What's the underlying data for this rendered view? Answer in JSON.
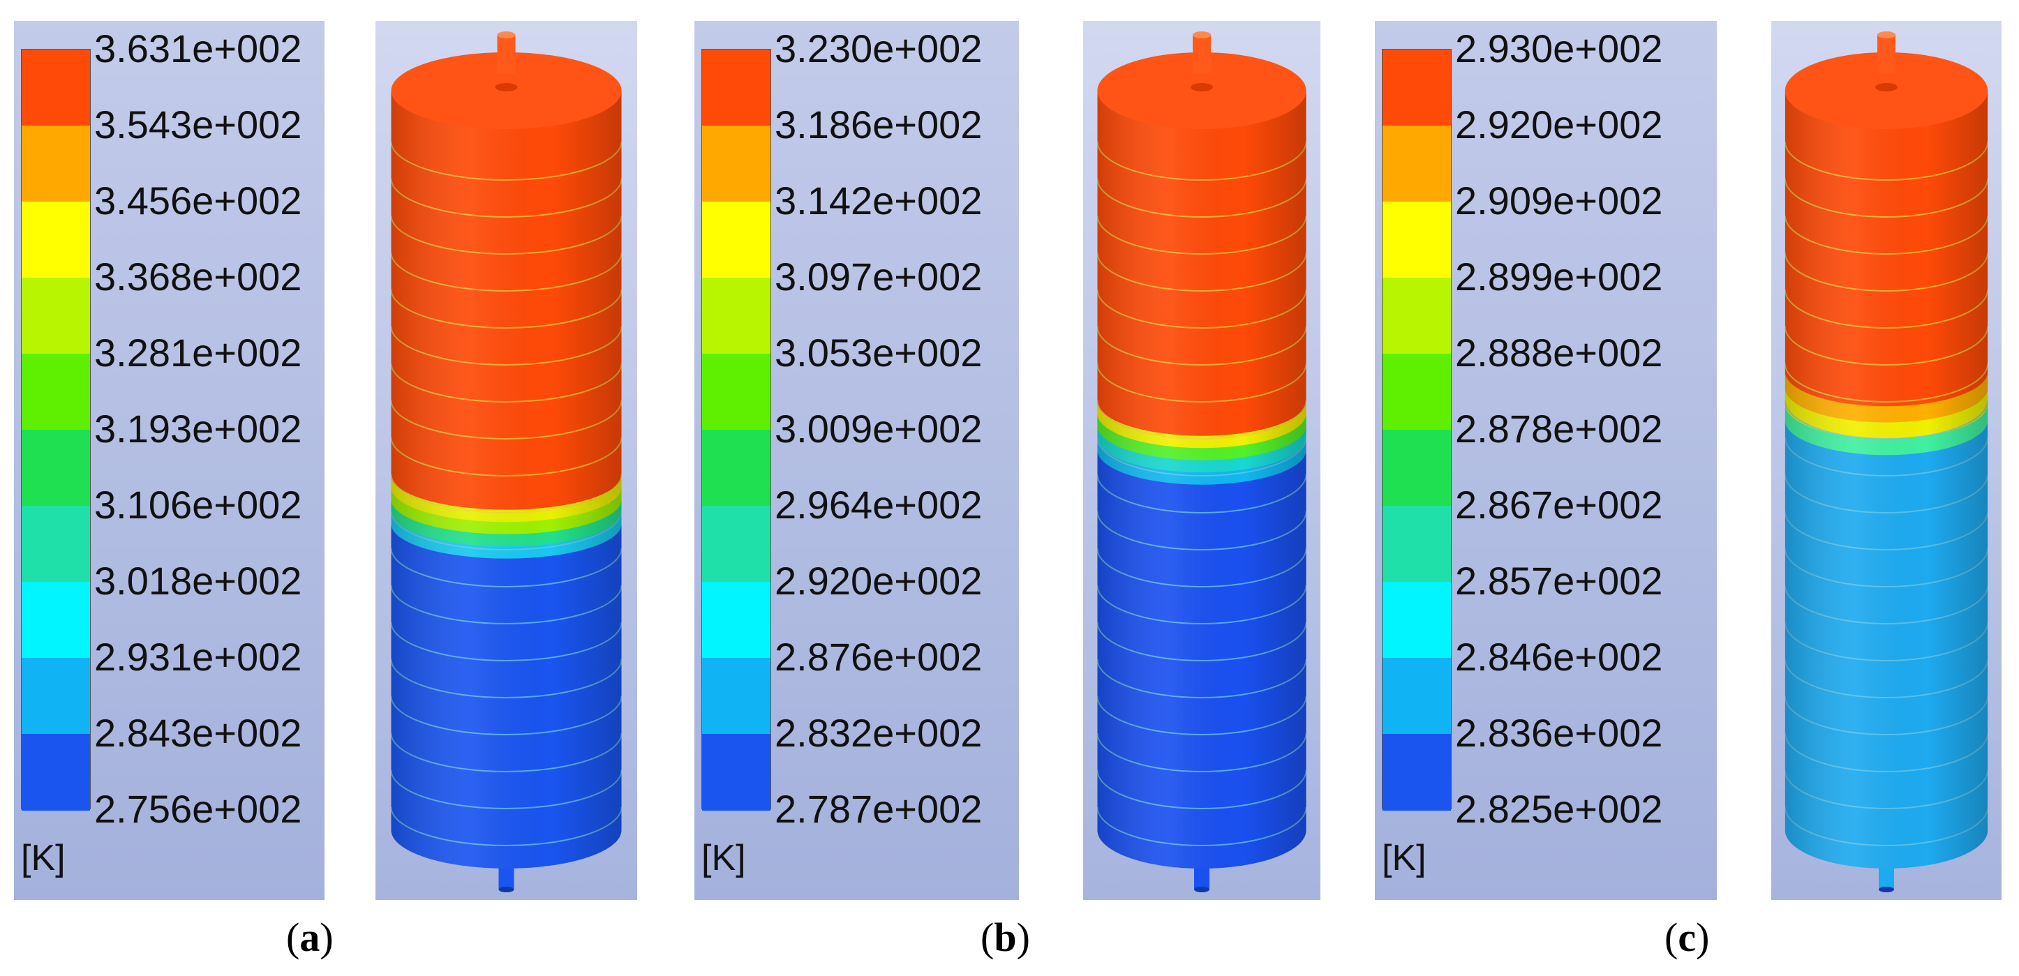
{
  "unit_label": "[K]",
  "panels": [
    {
      "label_letter": "a",
      "ticks": [
        "3.631e+002",
        "3.543e+002",
        "3.456e+002",
        "3.368e+002",
        "3.281e+002",
        "3.193e+002",
        "3.106e+002",
        "3.018e+002",
        "2.931e+002",
        "2.843e+002",
        "2.756e+002"
      ],
      "hot_fraction": 0.52,
      "transition_colors": [
        "#e8f000",
        "#9ef000",
        "#22e08a",
        "#18c8f0"
      ],
      "cold_color": "#1a55f0",
      "hot_color": "#ff4a08"
    },
    {
      "label_letter": "b",
      "ticks": [
        "3.230e+002",
        "3.186e+002",
        "3.142e+002",
        "3.097e+002",
        "3.053e+002",
        "3.009e+002",
        "2.964e+002",
        "2.920e+002",
        "2.876e+002",
        "2.832e+002",
        "2.787e+002"
      ],
      "hot_fraction": 0.42,
      "transition_colors": [
        "#f0f000",
        "#54f028",
        "#18d8d0",
        "#10b8f0"
      ],
      "cold_color": "#1a50f0",
      "hot_color": "#ff4a08"
    },
    {
      "label_letter": "c",
      "ticks": [
        "2.930e+002",
        "2.920e+002",
        "2.909e+002",
        "2.899e+002",
        "2.888e+002",
        "2.878e+002",
        "2.867e+002",
        "2.857e+002",
        "2.846e+002",
        "2.836e+002",
        "2.825e+002"
      ],
      "hot_fraction": 0.38,
      "transition_colors": [
        "#ffb000",
        "#f0f000",
        "#40f0a0"
      ],
      "cold_color": "#1eaaf0",
      "hot_color": "#ff4a08"
    }
  ],
  "colorbar_colors": [
    "#ff4a08",
    "#ffa800",
    "#ffff00",
    "#b8f500",
    "#5ef000",
    "#1ee050",
    "#1ee0a8",
    "#00f5ff",
    "#10b4f5",
    "#1a55f0"
  ]
}
